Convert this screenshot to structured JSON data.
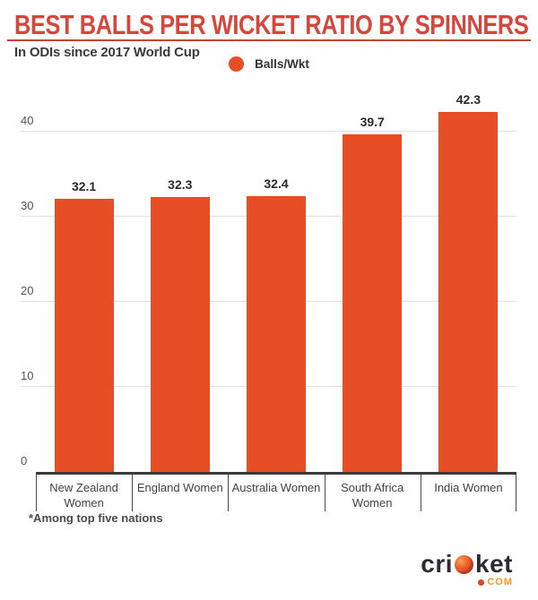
{
  "header": {
    "title": "BEST BALLS PER WICKET RATIO BY SPINNERS",
    "subtitle": "In ODIs since 2017 World Cup"
  },
  "legend": {
    "label": "Balls/Wkt"
  },
  "footnote": "*Among top five nations",
  "logo": {
    "pre": "cri",
    "post": "ket",
    "tld": "com"
  },
  "colors": {
    "bar": "#E84E25",
    "title_red": "#D5473D",
    "underline_red": "#C8423A",
    "axis": "#3A3A3A",
    "gridline": "#E2E2E2",
    "text_dark": "#3B3B3B",
    "logo_dark": "#2B2B33",
    "logo_orange": "#F39A1E"
  },
  "chart_data": {
    "type": "bar",
    "title": "BEST BALLS PER WICKET RATIO BY SPINNERS",
    "subtitle": "In ODIs since 2017 World Cup",
    "categories": [
      "New Zealand Women",
      "England Women",
      "Australia Women",
      "South Africa Women",
      "India Women"
    ],
    "values": [
      32.1,
      32.3,
      32.4,
      39.7,
      42.3
    ],
    "series_label": "Balls/Wkt",
    "xlabel": "",
    "ylabel": "",
    "ylim": [
      0,
      40
    ],
    "yticks": [
      0,
      10,
      20,
      30,
      40
    ],
    "grid": true,
    "legend_position": "top-center",
    "bar_color": "#E84E25",
    "footnote": "*Among top five nations"
  }
}
